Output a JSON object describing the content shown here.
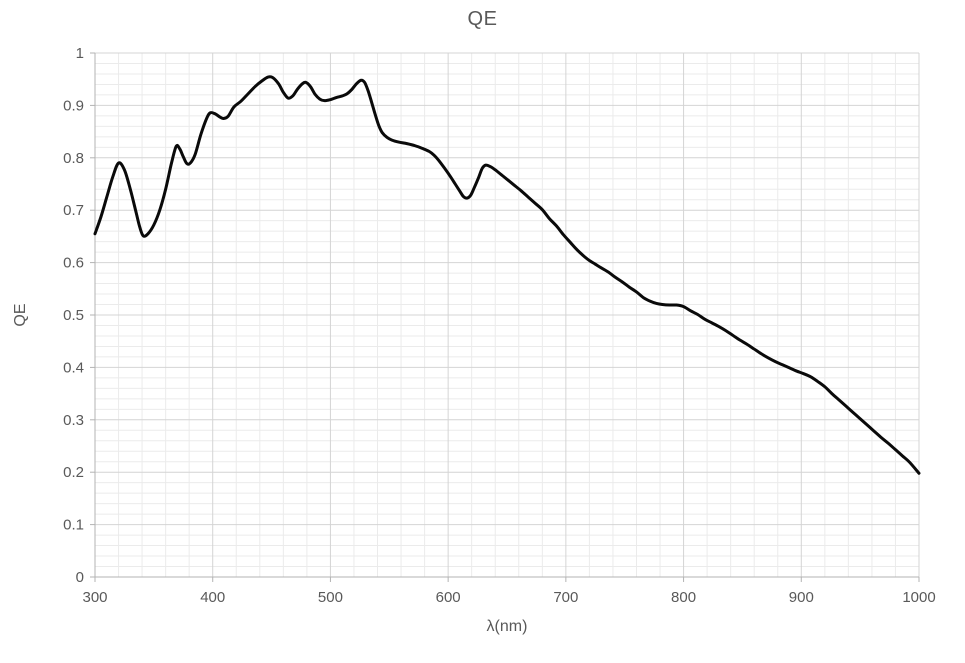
{
  "chart_data": {
    "type": "line",
    "title": "QE",
    "xlabel": "λ(nm)",
    "ylabel": "QE",
    "xlim": [
      300,
      1000
    ],
    "ylim": [
      0,
      1
    ],
    "x_major_step": 100,
    "x_minor_step": 20,
    "y_major_step": 0.1,
    "y_minor_step": 0.02,
    "x_ticks": [
      "300",
      "400",
      "500",
      "600",
      "700",
      "800",
      "900",
      "1000"
    ],
    "y_ticks": [
      "0",
      "0.1",
      "0.2",
      "0.3",
      "0.4",
      "0.5",
      "0.6",
      "0.7",
      "0.8",
      "0.9",
      "1"
    ],
    "grid": true,
    "legend": "none",
    "series": [
      {
        "name": "QE",
        "color": "#0a0a0a",
        "stroke_width": 3,
        "points": [
          [
            300,
            0.655
          ],
          [
            305,
            0.687
          ],
          [
            310,
            0.725
          ],
          [
            315,
            0.763
          ],
          [
            320,
            0.79
          ],
          [
            325,
            0.777
          ],
          [
            330,
            0.74
          ],
          [
            335,
            0.695
          ],
          [
            338,
            0.668
          ],
          [
            341,
            0.651
          ],
          [
            345,
            0.655
          ],
          [
            350,
            0.672
          ],
          [
            355,
            0.7
          ],
          [
            360,
            0.74
          ],
          [
            365,
            0.79
          ],
          [
            369,
            0.822
          ],
          [
            372,
            0.817
          ],
          [
            375,
            0.802
          ],
          [
            378,
            0.789
          ],
          [
            381,
            0.79
          ],
          [
            385,
            0.806
          ],
          [
            390,
            0.845
          ],
          [
            395,
            0.876
          ],
          [
            398,
            0.886
          ],
          [
            402,
            0.884
          ],
          [
            406,
            0.878
          ],
          [
            409,
            0.875
          ],
          [
            413,
            0.879
          ],
          [
            418,
            0.897
          ],
          [
            424,
            0.908
          ],
          [
            430,
            0.922
          ],
          [
            436,
            0.936
          ],
          [
            442,
            0.947
          ],
          [
            447,
            0.954
          ],
          [
            451,
            0.953
          ],
          [
            456,
            0.941
          ],
          [
            460,
            0.925
          ],
          [
            464,
            0.914
          ],
          [
            468,
            0.918
          ],
          [
            472,
            0.931
          ],
          [
            476,
            0.941
          ],
          [
            479,
            0.944
          ],
          [
            483,
            0.936
          ],
          [
            487,
            0.921
          ],
          [
            491,
            0.912
          ],
          [
            495,
            0.909
          ],
          [
            500,
            0.911
          ],
          [
            505,
            0.915
          ],
          [
            510,
            0.918
          ],
          [
            514,
            0.922
          ],
          [
            518,
            0.93
          ],
          [
            522,
            0.941
          ],
          [
            526,
            0.948
          ],
          [
            529,
            0.944
          ],
          [
            532,
            0.928
          ],
          [
            535,
            0.906
          ],
          [
            538,
            0.883
          ],
          [
            541,
            0.862
          ],
          [
            544,
            0.848
          ],
          [
            548,
            0.839
          ],
          [
            552,
            0.834
          ],
          [
            558,
            0.83
          ],
          [
            565,
            0.827
          ],
          [
            572,
            0.823
          ],
          [
            578,
            0.818
          ],
          [
            584,
            0.812
          ],
          [
            588,
            0.805
          ],
          [
            592,
            0.795
          ],
          [
            597,
            0.78
          ],
          [
            602,
            0.764
          ],
          [
            606,
            0.75
          ],
          [
            610,
            0.736
          ],
          [
            613,
            0.726
          ],
          [
            616,
            0.723
          ],
          [
            619,
            0.728
          ],
          [
            622,
            0.742
          ],
          [
            626,
            0.763
          ],
          [
            629,
            0.78
          ],
          [
            632,
            0.786
          ],
          [
            636,
            0.783
          ],
          [
            640,
            0.777
          ],
          [
            645,
            0.768
          ],
          [
            650,
            0.759
          ],
          [
            656,
            0.748
          ],
          [
            662,
            0.737
          ],
          [
            668,
            0.725
          ],
          [
            674,
            0.713
          ],
          [
            680,
            0.701
          ],
          [
            686,
            0.684
          ],
          [
            692,
            0.67
          ],
          [
            698,
            0.653
          ],
          [
            704,
            0.638
          ],
          [
            708,
            0.628
          ],
          [
            712,
            0.619
          ],
          [
            716,
            0.611
          ],
          [
            720,
            0.604
          ],
          [
            725,
            0.597
          ],
          [
            730,
            0.59
          ],
          [
            736,
            0.582
          ],
          [
            742,
            0.572
          ],
          [
            748,
            0.563
          ],
          [
            754,
            0.553
          ],
          [
            760,
            0.544
          ],
          [
            766,
            0.533
          ],
          [
            772,
            0.526
          ],
          [
            777,
            0.522
          ],
          [
            782,
            0.52
          ],
          [
            788,
            0.519
          ],
          [
            794,
            0.519
          ],
          [
            800,
            0.516
          ],
          [
            806,
            0.508
          ],
          [
            812,
            0.501
          ],
          [
            818,
            0.492
          ],
          [
            824,
            0.485
          ],
          [
            830,
            0.478
          ],
          [
            836,
            0.47
          ],
          [
            842,
            0.461
          ],
          [
            848,
            0.452
          ],
          [
            854,
            0.444
          ],
          [
            860,
            0.435
          ],
          [
            866,
            0.426
          ],
          [
            872,
            0.418
          ],
          [
            878,
            0.411
          ],
          [
            884,
            0.405
          ],
          [
            890,
            0.399
          ],
          [
            896,
            0.393
          ],
          [
            902,
            0.388
          ],
          [
            908,
            0.382
          ],
          [
            914,
            0.373
          ],
          [
            920,
            0.363
          ],
          [
            926,
            0.35
          ],
          [
            932,
            0.338
          ],
          [
            938,
            0.326
          ],
          [
            944,
            0.314
          ],
          [
            950,
            0.302
          ],
          [
            956,
            0.29
          ],
          [
            962,
            0.278
          ],
          [
            968,
            0.266
          ],
          [
            974,
            0.255
          ],
          [
            980,
            0.243
          ],
          [
            986,
            0.231
          ],
          [
            992,
            0.219
          ],
          [
            1000,
            0.198
          ]
        ]
      }
    ],
    "style": {
      "major_grid_color": "#d4d4d4",
      "minor_grid_color": "#ebebeb",
      "axis_color": "#b3b3b3",
      "label_color": "#595959",
      "background": "#ffffff"
    }
  }
}
